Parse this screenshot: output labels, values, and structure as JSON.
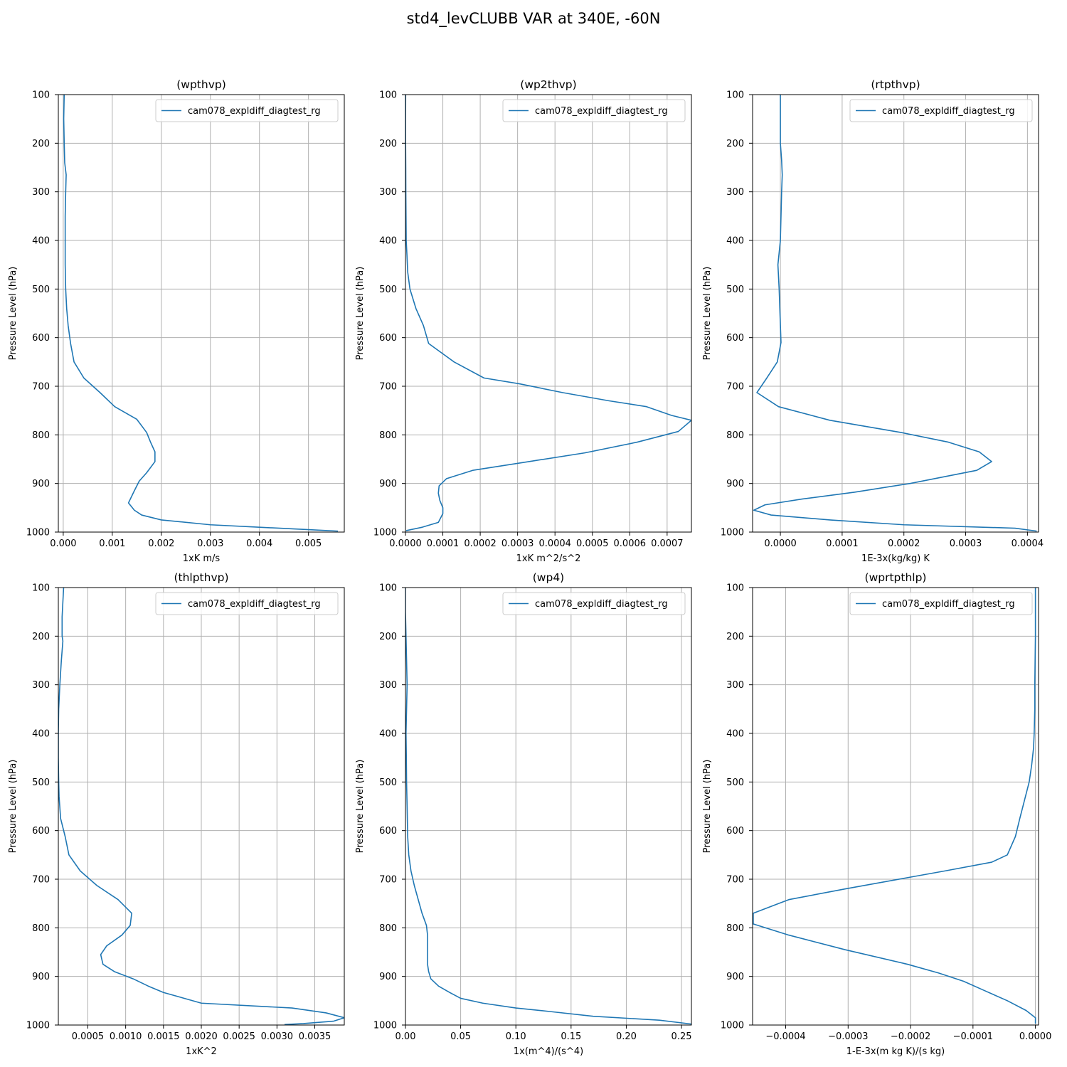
{
  "figure": {
    "title": "std4_levCLUBB VAR at 340E, -60N"
  },
  "colors": {
    "series": "#1f77b4",
    "grid": "#b0b0b0",
    "axes": "#000000"
  },
  "chart_data": [
    {
      "type": "line",
      "title": "(wpthvp)",
      "xlabel": "1xK m/s",
      "ylabel": "Pressure Level (hPa)",
      "xlim": [
        -0.0001,
        0.00573
      ],
      "ylim": [
        1000,
        100
      ],
      "xticks": [
        0.0,
        0.001,
        0.002,
        0.003,
        0.004,
        0.005
      ],
      "xtick_labels": [
        "0.000",
        "0.001",
        "0.002",
        "0.003",
        "0.004",
        "0.005"
      ],
      "yticks": [
        100,
        200,
        300,
        400,
        500,
        600,
        700,
        800,
        900,
        1000
      ],
      "grid": true,
      "legend": "upper right",
      "series": [
        {
          "name": "cam078_expldiff_diagtest_rg",
          "x": [
            2e-05,
            1e-05,
            2e-05,
            3e-05,
            6e-05,
            5e-05,
            4e-05,
            4e-05,
            4e-05,
            5e-05,
            7e-05,
            0.0001,
            0.00015,
            0.00022,
            0.00042,
            0.00075,
            0.00105,
            0.0015,
            0.0017,
            0.00178,
            0.00187,
            0.00187,
            0.0017,
            0.00155,
            0.00145,
            0.00133,
            0.00145,
            0.0016,
            0.002,
            0.003,
            0.004,
            0.005,
            0.0056
          ],
          "y": [
            100,
            150,
            200,
            240,
            265,
            300,
            350,
            400,
            450,
            500,
            540,
            575,
            612,
            650,
            683,
            713,
            742,
            768,
            795,
            815,
            835,
            855,
            878,
            895,
            915,
            940,
            955,
            965,
            975,
            985,
            990,
            995,
            998
          ]
        }
      ]
    },
    {
      "type": "line",
      "title": "(wp2thvp)",
      "xlabel": "1xK m^2/s^2",
      "ylabel": "Pressure Level (hPa)",
      "xlim": [
        0.0,
        0.000765
      ],
      "ylim": [
        1000,
        100
      ],
      "xticks": [
        0.0,
        0.0001,
        0.0002,
        0.0003,
        0.0004,
        0.0005,
        0.0006,
        0.0007
      ],
      "xtick_labels": [
        "0.0000",
        "0.0001",
        "0.0002",
        "0.0003",
        "0.0004",
        "0.0005",
        "0.0006",
        "0.0007"
      ],
      "yticks": [
        100,
        200,
        300,
        400,
        500,
        600,
        700,
        800,
        900,
        1000
      ],
      "grid": true,
      "legend": "upper right",
      "series": [
        {
          "name": "cam078_expldiff_diagtest_rg",
          "x": [
            5e-07,
            3e-07,
            4e-07,
            8e-07,
            1e-06,
            1.5e-06,
            2e-06,
            4e-06,
            6e-06,
            1.2e-05,
            2.8e-05,
            4.8e-05,
            6.2e-05,
            0.00013,
            0.00021,
            0.000305,
            0.00042,
            0.000545,
            0.000645,
            0.000712,
            0.000765,
            0.00073,
            0.00062,
            0.00048,
            0.00033,
            0.00018,
            0.00011,
            9e-05,
            8.8e-05,
            9.2e-05,
            0.0001,
            0.0001,
            8.8e-05,
            4.5e-05,
            2e-06
          ],
          "y": [
            100,
            150,
            200,
            250,
            300,
            350,
            400,
            430,
            465,
            500,
            540,
            575,
            612,
            650,
            683,
            695,
            713,
            730,
            742,
            760,
            770,
            793,
            815,
            837,
            855,
            873,
            890,
            905,
            920,
            935,
            950,
            962,
            980,
            990,
            997
          ]
        }
      ]
    },
    {
      "type": "line",
      "title": "(rtpthvp)",
      "xlabel": "1E-3x(kg/kg) K",
      "ylabel": "Pressure Level (hPa)",
      "xlim": [
        -4.5e-05,
        0.000418
      ],
      "ylim": [
        1000,
        100
      ],
      "xticks": [
        0.0,
        0.0001,
        0.0002,
        0.0003,
        0.0004
      ],
      "xtick_labels": [
        "0.0000",
        "0.0001",
        "0.0002",
        "0.0003",
        "0.0004"
      ],
      "yticks": [
        100,
        200,
        300,
        400,
        500,
        600,
        700,
        800,
        900,
        1000
      ],
      "grid": true,
      "legend": "upper right",
      "series": [
        {
          "name": "cam078_expldiff_diagtest_rg",
          "x": [
            0.0,
            0.0,
            0.0,
            2e-06,
            3e-06,
            2e-06,
            1e-06,
            0.0,
            -4e-06,
            -2e-06,
            1e-06,
            -5e-06,
            -2.2e-05,
            -3.8e-05,
            -3e-06,
            8e-05,
            0.000195,
            0.000272,
            0.000322,
            0.000342,
            0.000318,
            0.00021,
            0.00012,
            3.5e-05,
            -2.5e-05,
            -4.3e-05,
            -1.5e-05,
            8e-05,
            0.0002,
            0.00038,
            0.000415
          ],
          "y": [
            100,
            150,
            200,
            235,
            265,
            300,
            350,
            400,
            450,
            500,
            610,
            650,
            683,
            713,
            742,
            770,
            795,
            815,
            835,
            855,
            873,
            900,
            918,
            932,
            944,
            955,
            965,
            975,
            985,
            992,
            998
          ]
        }
      ]
    },
    {
      "type": "line",
      "title": "(thlpthvp)",
      "xlabel": "1xK^2",
      "ylabel": "Pressure Level (hPa)",
      "xlim": [
        0.00011,
        0.00389
      ],
      "ylim": [
        1000,
        100
      ],
      "xticks": [
        0.0005,
        0.001,
        0.0015,
        0.002,
        0.0025,
        0.003,
        0.0035
      ],
      "xtick_labels": [
        "0.0005",
        "0.0010",
        "0.0015",
        "0.0020",
        "0.0025",
        "0.0030",
        "0.0035"
      ],
      "yticks": [
        100,
        200,
        300,
        400,
        500,
        600,
        700,
        800,
        900,
        1000
      ],
      "grid": true,
      "legend": "upper right",
      "series": [
        {
          "name": "cam078_expldiff_diagtest_rg",
          "x": [
            0.00018,
            0.00017,
            0.00016,
            0.00016,
            0.00017,
            0.00015,
            0.00013,
            0.000115,
            0.00011,
            0.00011,
            0.000115,
            0.00012,
            0.00014,
            0.0002,
            0.00025,
            0.0004,
            0.00062,
            0.0009,
            0.00108,
            0.00106,
            0.00095,
            0.00075,
            0.00067,
            0.0007,
            0.00085,
            0.0011,
            0.0013,
            0.0015,
            0.002,
            0.0032,
            0.00365,
            0.00389,
            0.00375,
            0.00335,
            0.0031
          ],
          "y": [
            100,
            130,
            160,
            200,
            210,
            250,
            300,
            350,
            400,
            450,
            500,
            530,
            575,
            612,
            650,
            683,
            713,
            742,
            770,
            795,
            815,
            837,
            855,
            875,
            890,
            905,
            920,
            933,
            955,
            965,
            975,
            985,
            992,
            997,
            999
          ]
        }
      ]
    },
    {
      "type": "line",
      "title": "(wp4)",
      "xlabel": "1x(m^4)/(s^4)",
      "ylabel": "Pressure Level (hPa)",
      "xlim": [
        0.0,
        0.259
      ],
      "ylim": [
        1000,
        100
      ],
      "xticks": [
        0.0,
        0.05,
        0.1,
        0.15,
        0.2,
        0.25
      ],
      "xtick_labels": [
        "0.00",
        "0.05",
        "0.10",
        "0.15",
        "0.20",
        "0.25"
      ],
      "yticks": [
        100,
        200,
        300,
        400,
        500,
        600,
        700,
        800,
        900,
        1000
      ],
      "grid": true,
      "legend": "upper right",
      "series": [
        {
          "name": "cam078_expldiff_diagtest_rg",
          "x": [
            0.0,
            0.0,
            0.0005,
            0.001,
            0.0015,
            0.001,
            0.0005,
            0.0008,
            0.001,
            0.0015,
            0.002,
            0.003,
            0.005,
            0.008,
            0.015,
            0.019,
            0.02,
            0.02,
            0.02,
            0.021,
            0.023,
            0.03,
            0.04,
            0.05,
            0.07,
            0.1,
            0.13,
            0.17,
            0.23,
            0.259
          ],
          "y": [
            100,
            150,
            200,
            250,
            300,
            350,
            400,
            450,
            500,
            550,
            612,
            650,
            683,
            713,
            770,
            795,
            815,
            837,
            875,
            890,
            905,
            920,
            933,
            945,
            955,
            965,
            972,
            982,
            990,
            998
          ]
        }
      ]
    },
    {
      "type": "line",
      "title": "(wprtpthlp)",
      "xlabel": "1-E-3x(m kg K)/(s kg)",
      "ylabel": "Pressure Level (hPa)",
      "xlim": [
        -0.000453,
        5e-06
      ],
      "ylim": [
        1000,
        100
      ],
      "xticks": [
        -0.0004,
        -0.0003,
        -0.0002,
        -0.0001,
        0.0
      ],
      "xtick_labels": [
        "−0.0004",
        "−0.0003",
        "−0.0002",
        "−0.0001",
        "0.0000"
      ],
      "yticks": [
        100,
        200,
        300,
        400,
        500,
        600,
        700,
        800,
        900,
        1000
      ],
      "grid": true,
      "legend": "upper right",
      "series": [
        {
          "name": "cam078_expldiff_diagtest_rg",
          "x": [
            0.0,
            0.0,
            -1e-06,
            -1e-06,
            -2e-06,
            -3e-06,
            -6e-06,
            -1e-05,
            -1.8e-05,
            -2.5e-05,
            -3.2e-05,
            -4.5e-05,
            -7e-05,
            -0.000145,
            -0.00021,
            -0.000305,
            -0.000395,
            -0.000452,
            -0.000452,
            -0.000395,
            -0.000305,
            -0.000205,
            -0.000155,
            -0.000115,
            -8e-05,
            -4.5e-05,
            -1.5e-05,
            0.0,
            0.0
          ],
          "y": [
            100,
            200,
            300,
            350,
            400,
            430,
            465,
            500,
            540,
            575,
            612,
            650,
            665,
            683,
            698,
            720,
            742,
            770,
            792,
            815,
            845,
            875,
            893,
            910,
            930,
            950,
            970,
            985,
            997
          ]
        }
      ]
    }
  ]
}
